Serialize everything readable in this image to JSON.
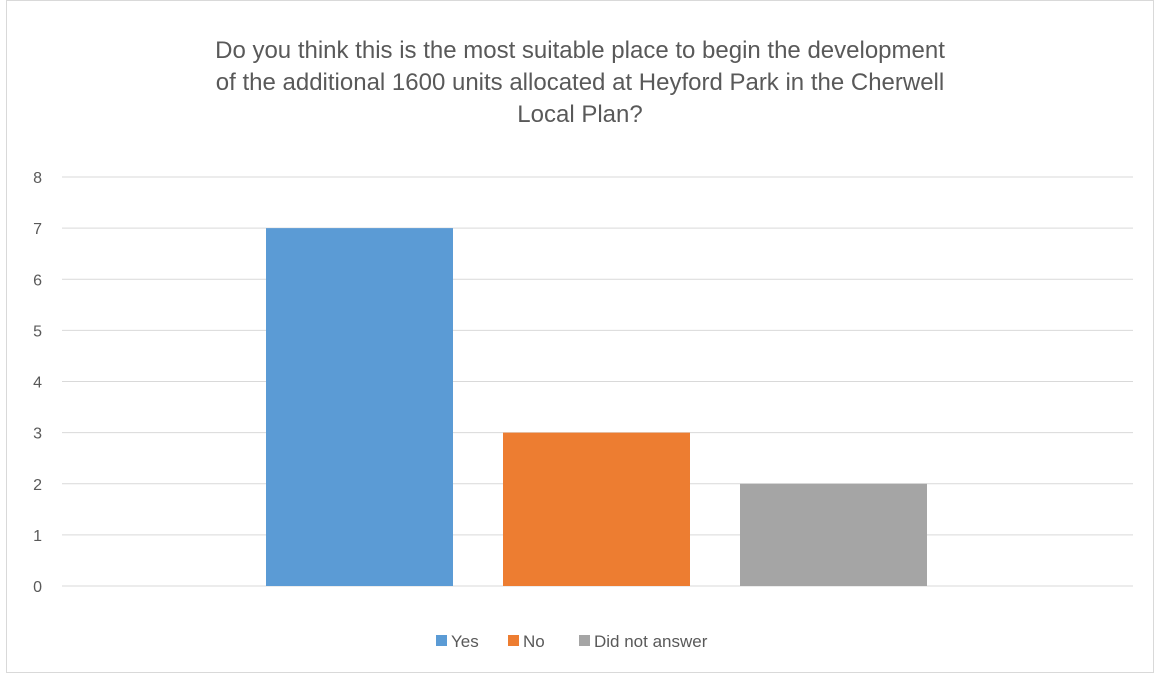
{
  "chart_data": {
    "type": "bar",
    "title_lines": [
      "Do you think this is the most suitable place to begin the development",
      "of the additional 1600 units allocated at Heyford Park in the Cherwell",
      "Local Plan?"
    ],
    "series": [
      {
        "name": "Yes",
        "value": 7,
        "color": "#5b9bd5"
      },
      {
        "name": "No",
        "value": 3,
        "color": "#ed7d31"
      },
      {
        "name": "Did not answer",
        "value": 2,
        "color": "#a5a5a5"
      }
    ],
    "ylim": [
      0,
      8
    ],
    "yticks": [
      "0",
      "1",
      "2",
      "3",
      "4",
      "5",
      "6",
      "7",
      "8"
    ],
    "grid": true,
    "legend_position": "bottom"
  }
}
